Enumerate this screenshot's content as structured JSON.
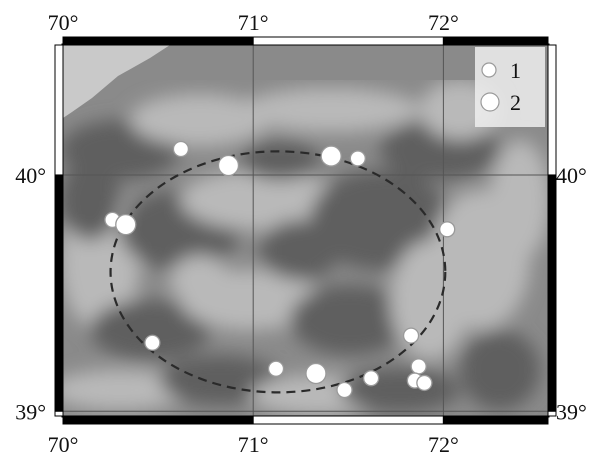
{
  "map": {
    "lon_range": [
      70,
      72.55
    ],
    "lat_range": [
      38.98,
      40.55
    ],
    "graticule": {
      "lon": [
        70,
        71,
        72
      ],
      "lat": [
        39,
        40
      ]
    },
    "ticks": {
      "top": [
        "70°",
        "71°",
        "72°"
      ],
      "bottom": [
        "70°",
        "71°",
        "72°"
      ],
      "left": [
        "40°",
        "39°"
      ],
      "right": [
        "40°",
        "39°"
      ]
    },
    "colors": {
      "relief_dark": "#5f5f5f",
      "relief_light": "#b9b9b9",
      "water": "#c9c9c9",
      "circle_line": "#2a2a2a",
      "marker_fill": "#ffffff",
      "marker_edge": "#9a9a9a",
      "frame": "#000000"
    },
    "circle": {
      "center_lon": 71.13,
      "center_lat": 39.59,
      "radius_lon": 0.88,
      "radius_lat": 0.51,
      "style": "dashed"
    },
    "legend": {
      "position": "top-right",
      "items": [
        {
          "label": "1",
          "symbol": "small-circle"
        },
        {
          "label": "2",
          "symbol": "large-circle"
        }
      ]
    },
    "events": [
      {
        "lon": 70.62,
        "lat": 40.11,
        "type": 1
      },
      {
        "lon": 70.87,
        "lat": 40.04,
        "type": 2
      },
      {
        "lon": 71.41,
        "lat": 40.08,
        "type": 2
      },
      {
        "lon": 71.55,
        "lat": 40.07,
        "type": 1
      },
      {
        "lon": 70.26,
        "lat": 39.81,
        "type": 1
      },
      {
        "lon": 70.33,
        "lat": 39.79,
        "type": 2
      },
      {
        "lon": 72.02,
        "lat": 39.77,
        "type": 1
      },
      {
        "lon": 70.47,
        "lat": 39.29,
        "type": 1
      },
      {
        "lon": 71.83,
        "lat": 39.32,
        "type": 1
      },
      {
        "lon": 71.12,
        "lat": 39.18,
        "type": 1
      },
      {
        "lon": 71.33,
        "lat": 39.16,
        "type": 2
      },
      {
        "lon": 71.87,
        "lat": 39.19,
        "type": 1
      },
      {
        "lon": 71.62,
        "lat": 39.14,
        "type": 1
      },
      {
        "lon": 71.85,
        "lat": 39.13,
        "type": 1
      },
      {
        "lon": 71.9,
        "lat": 39.12,
        "type": 1
      },
      {
        "lon": 71.48,
        "lat": 39.09,
        "type": 1
      }
    ]
  }
}
